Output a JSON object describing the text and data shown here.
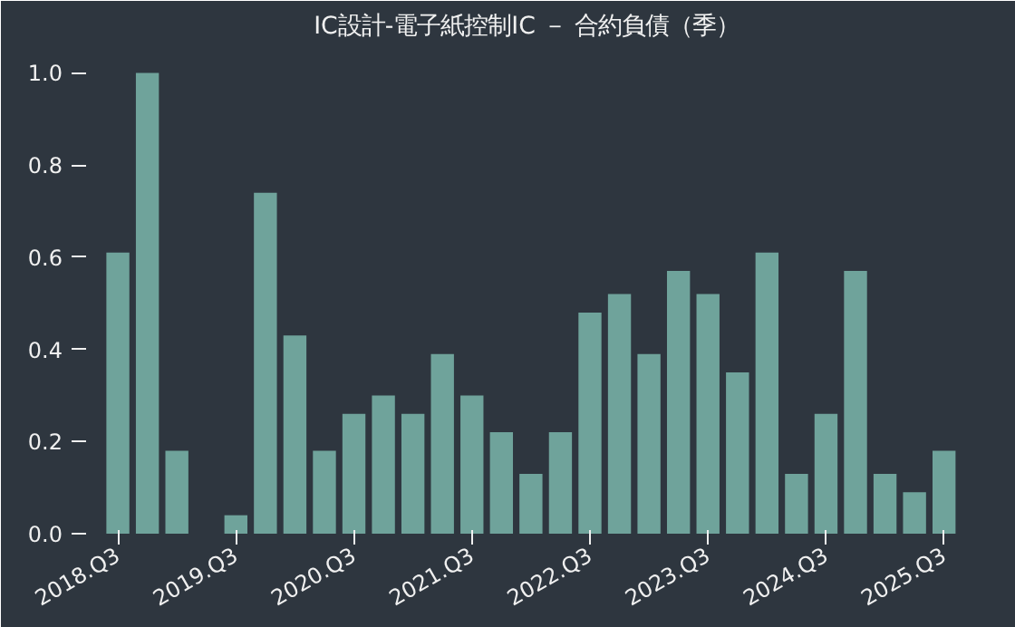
{
  "chart_data": {
    "type": "bar",
    "title": "IC設計-電子紙控制IC － 合約負債（季）",
    "categories": [
      "2018.Q3",
      null,
      null,
      null,
      "2019.Q3",
      null,
      null,
      null,
      "2020.Q3",
      null,
      null,
      null,
      "2021.Q3",
      null,
      null,
      null,
      "2022.Q3",
      null,
      null,
      null,
      "2023.Q3",
      null,
      null,
      null,
      "2024.Q3",
      null,
      null,
      null,
      "2025.Q3"
    ],
    "values": [
      0.61,
      1.0,
      0.18,
      0,
      0.04,
      0.74,
      0.43,
      0.18,
      0.26,
      0.3,
      0.26,
      0.39,
      0.3,
      0.22,
      0.13,
      0.22,
      0.48,
      0.52,
      0.39,
      0.57,
      0.52,
      0.35,
      0.61,
      0.13,
      0.26,
      0.57,
      0.13,
      0.09,
      0.18
    ],
    "color": "#6fa39b",
    "ylim": [
      0,
      1.05
    ],
    "yticks": [
      {
        "value": 0,
        "label": "0.0"
      },
      {
        "value": 0.2,
        "label": "0.2"
      },
      {
        "value": 0.4,
        "label": "0.4"
      },
      {
        "value": 0.6,
        "label": "0.6"
      },
      {
        "value": 0.8,
        "label": "0.8"
      },
      {
        "value": 1.0,
        "label": "1.0"
      }
    ],
    "grid": false
  }
}
